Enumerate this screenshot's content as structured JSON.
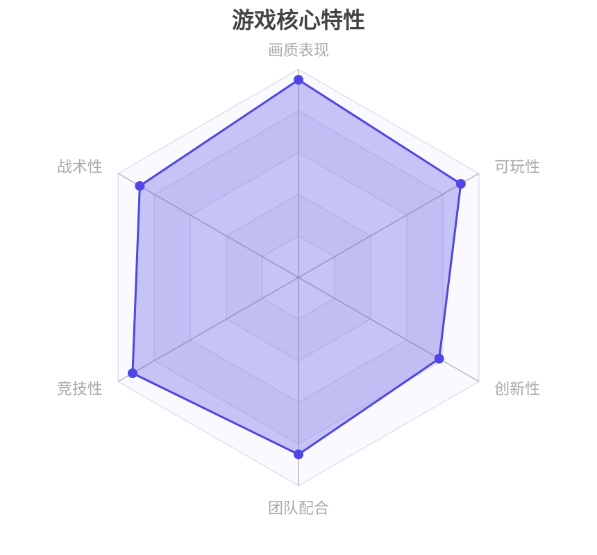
{
  "chart_data": {
    "type": "radar",
    "title": "游戏核心特性",
    "indicators": [
      "画质表现",
      "可玩性",
      "创新性",
      "团队配合",
      "竞技性",
      "战术性"
    ],
    "max": 100,
    "split_number": 5,
    "series": [
      {
        "values": [
          95,
          90,
          78,
          85,
          92,
          88
        ]
      }
    ],
    "colors": {
      "line": "#4f46e5",
      "area": "rgba(79,70,229,0.3)",
      "split_line": "#dde0ee",
      "axis_line": "#aaaaaa",
      "label": "#aaaaaa"
    }
  }
}
